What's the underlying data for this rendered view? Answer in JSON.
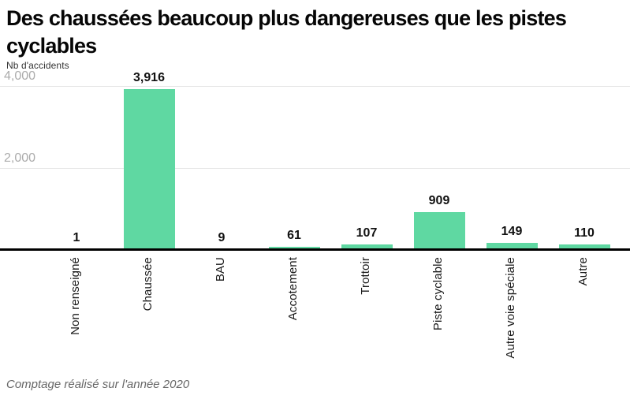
{
  "header": {
    "title_line1": "Des chaussées beaucoup plus dangereuses que les pistes",
    "title_line2": "cyclables",
    "title_full": "Des chaussées beaucoup plus dangereuses que les pistes cyclables"
  },
  "chart_data": {
    "type": "bar",
    "title": "Des chaussées beaucoup plus dangereuses que les pistes cyclables",
    "ylabel": "Nb d'accidents",
    "xlabel": "",
    "categories": [
      "Non renseigné",
      "Chaussée",
      "BAU",
      "Accotement",
      "Trottoir",
      "Piste cyclable",
      "Autre voie spéciale",
      "Autre"
    ],
    "values": [
      1,
      3916,
      9,
      61,
      107,
      909,
      149,
      110
    ],
    "value_labels": [
      "1",
      "3,916",
      "9",
      "61",
      "107",
      "909",
      "149",
      "110"
    ],
    "ylim": [
      0,
      4000
    ],
    "yticks": [
      {
        "value": 2000,
        "label": "2,000"
      },
      {
        "value": 4000,
        "label": "4,000"
      }
    ],
    "grid": "horizontal",
    "legend": "none",
    "bar_color": "#5fd8a2"
  },
  "footer": {
    "note": "Comptage réalisé sur l'année 2020"
  },
  "colors": {
    "accent_green": "#5fd8a2",
    "gridline": "#e4e4e4",
    "axis": "#000000",
    "ytick_text": "#ababab",
    "title_text": "#060606",
    "footer_text": "#676767"
  }
}
